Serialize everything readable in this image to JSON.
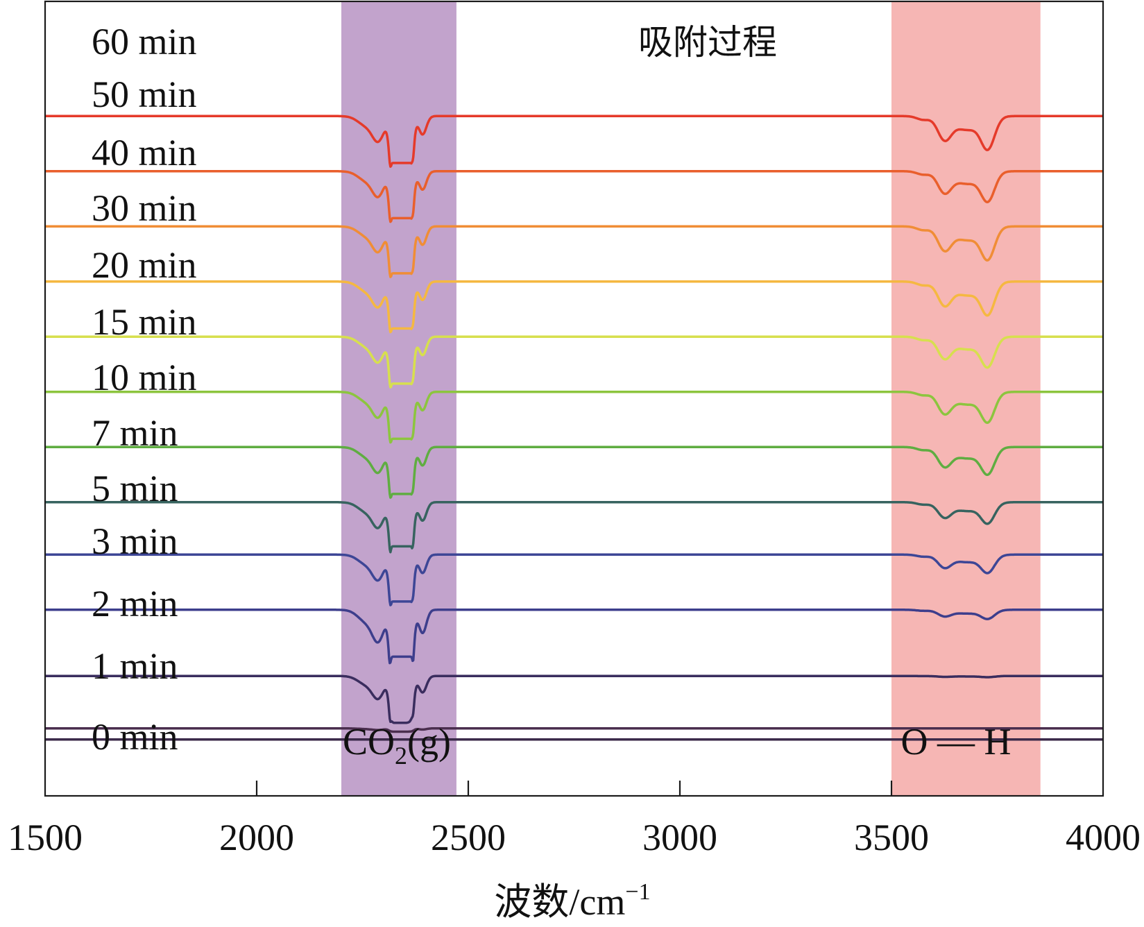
{
  "chart_data": {
    "type": "line",
    "title": "吸附过程",
    "xlabel_main": "波数/cm",
    "xlabel_sup": "−1",
    "xlim": [
      1500,
      4000
    ],
    "xticks": [
      1500,
      2000,
      2500,
      3000,
      3500,
      4000
    ],
    "xtick_labels": [
      "1500",
      "2000",
      "2500",
      "3000",
      "3500",
      "4000"
    ],
    "bands": [
      {
        "name": "co2",
        "label_main": "CO",
        "label_sub": "2",
        "label_tail": "(g)",
        "x0": 2200,
        "x1": 2472,
        "color": "#c2a3cc"
      },
      {
        "name": "oh",
        "label": "O — H",
        "x0": 3500,
        "x1": 3852,
        "color": "#f6b6b4"
      }
    ],
    "series": [
      {
        "name": "60 min",
        "offset": 10.6,
        "color": "#e53a2a",
        "co2_depth": 0.95,
        "co2_clip": 0.85,
        "oh_depth": 0.55
      },
      {
        "name": "50 min",
        "offset": 9.6,
        "color": "#e95f2c",
        "co2_depth": 0.95,
        "co2_clip": 0.85,
        "oh_depth": 0.5
      },
      {
        "name": "40 min",
        "offset": 8.6,
        "color": "#f08d36",
        "co2_depth": 0.95,
        "co2_clip": 0.85,
        "oh_depth": 0.55
      },
      {
        "name": "30 min",
        "offset": 7.6,
        "color": "#f5b841",
        "co2_depth": 0.95,
        "co2_clip": 0.85,
        "oh_depth": 0.55
      },
      {
        "name": "20 min",
        "offset": 6.6,
        "color": "#d7df4e",
        "co2_depth": 0.95,
        "co2_clip": 0.85,
        "oh_depth": 0.5
      },
      {
        "name": "15 min",
        "offset": 5.6,
        "color": "#8cc53e",
        "co2_depth": 0.95,
        "co2_clip": 0.85,
        "oh_depth": 0.5
      },
      {
        "name": "10 min",
        "offset": 4.6,
        "color": "#5fad41",
        "co2_depth": 0.95,
        "co2_clip": 0.85,
        "oh_depth": 0.45
      },
      {
        "name": "7 min",
        "offset": 3.6,
        "color": "#37635f",
        "co2_depth": 0.95,
        "co2_clip": 0.8,
        "oh_depth": 0.35
      },
      {
        "name": "5 min",
        "offset": 2.65,
        "color": "#3d4696",
        "co2_depth": 0.95,
        "co2_clip": 0.85,
        "oh_depth": 0.3
      },
      {
        "name": "3 min",
        "offset": 1.65,
        "color": "#3d3e8c",
        "co2_depth": 1.2,
        "co2_clip": 0.85,
        "oh_depth": 0.15
      },
      {
        "name": "2 min",
        "offset": 0.45,
        "color": "#3a2d5e",
        "co2_depth": 0.85,
        "co2_clip": 0.85,
        "oh_depth": 0.02
      },
      {
        "name": "1 min",
        "offset": -0.5,
        "color": "#4a2e4e",
        "co2_depth": 0.06,
        "co2_clip": 0.06,
        "oh_depth": 0.0
      },
      {
        "name": "0 min",
        "offset": -0.7,
        "color": "#3b2a4a",
        "co2_depth": 0.0,
        "co2_clip": 0.0,
        "oh_depth": 0.0
      }
    ]
  }
}
